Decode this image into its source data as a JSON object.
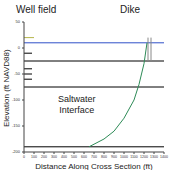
{
  "chart_data": {
    "type": "line",
    "xlabel": "Distance Along Cross Section (ft)",
    "ylabel": "Elevation (ft NAVD88)",
    "annotations": [
      "Well field",
      "Dike",
      "Saltwater Interface"
    ],
    "xlim": [
      0,
      1400
    ],
    "xticks": [
      0,
      100,
      200,
      300,
      400,
      500,
      600,
      700,
      800,
      900,
      1000,
      1100,
      1200,
      1300,
      1400
    ],
    "ylim": [
      -200,
      50
    ],
    "yticks": [
      -200,
      -150,
      -100,
      -50,
      0,
      50
    ],
    "grid": false,
    "series": [
      {
        "color": "#b5b54a",
        "x": [
          0,
          100
        ],
        "values": [
          20,
          20
        ]
      },
      {
        "color": "#3050c8",
        "x": [
          0,
          1400
        ],
        "values": [
          10,
          10
        ]
      },
      {
        "color": "#000000",
        "x": [
          0,
          1400
        ],
        "values": [
          -25,
          -25
        ]
      },
      {
        "color": "#000000",
        "x": [
          0,
          1400
        ],
        "values": [
          -75,
          -75
        ]
      },
      {
        "color": "#000000",
        "x": [
          0,
          1400
        ],
        "values": [
          -190,
          -190
        ]
      },
      {
        "color": "#000000",
        "x": [
          0,
          80
        ],
        "values": [
          -10,
          -10
        ]
      },
      {
        "color": "#000000",
        "x": [
          0,
          80
        ],
        "values": [
          -40,
          -40
        ]
      },
      {
        "color": "#000000",
        "x": [
          0,
          80
        ],
        "values": [
          -50,
          -50
        ]
      },
      {
        "color": "#000000",
        "x": [
          0,
          80
        ],
        "values": [
          -60,
          -60
        ]
      },
      {
        "color": "#888888",
        "x": [
          1240,
          1240
        ],
        "values": [
          -25,
          20
        ]
      },
      {
        "color": "#888888",
        "x": [
          1270,
          1270
        ],
        "values": [
          -25,
          20
        ]
      },
      {
        "color": "#2e8b57",
        "x": [
          650,
          800,
          900,
          1000,
          1100,
          1150,
          1200,
          1230
        ],
        "values": [
          -190,
          -175,
          -160,
          -135,
          -100,
          -70,
          -30,
          10
        ]
      }
    ]
  }
}
